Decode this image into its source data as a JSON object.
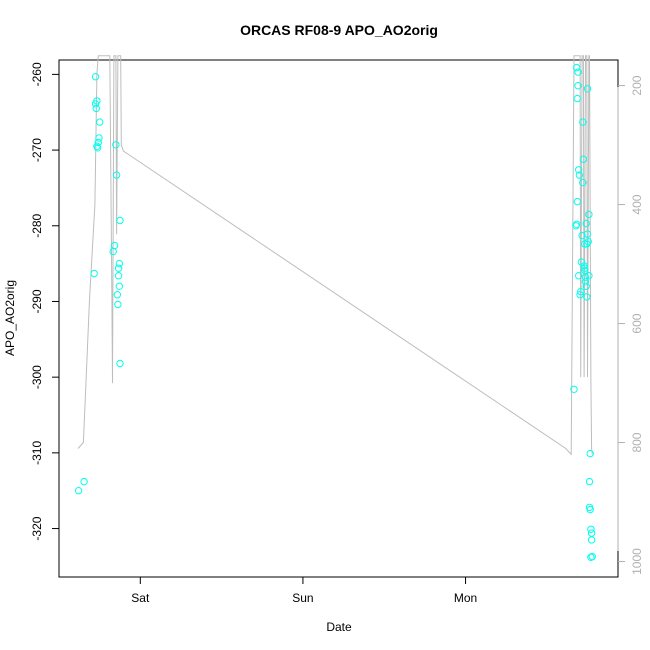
{
  "chart_data": {
    "type": "scatter",
    "title": "ORCAS RF08-9 APO_AO2orig",
    "xlabel": "Date",
    "ylabel": "APO_AO2orig",
    "x_ticks": [
      {
        "label": "Sat",
        "value": 24
      },
      {
        "label": "Sun",
        "value": 48
      },
      {
        "label": "Mon",
        "value": 72
      }
    ],
    "xlim": [
      12.0,
      94.5
    ],
    "ylim": [
      -326.4,
      -258.1
    ],
    "y_ticks": [
      -320,
      -310,
      -300,
      -290,
      -280,
      -270,
      -260
    ],
    "y2_label": "",
    "y2_ticks": [
      200,
      400,
      600,
      800,
      1000
    ],
    "y2lim": [
      1026,
      157
    ],
    "y2_axis_color": "#b0b0b0",
    "grid": false,
    "series": [
      {
        "kind": "points",
        "color": "#00ffee",
        "points": [
          [
            14.9,
            -315.0
          ],
          [
            15.7,
            -313.8
          ],
          [
            17.2,
            -286.3
          ],
          [
            17.4,
            -260.3
          ],
          [
            17.4,
            -263.9
          ],
          [
            17.5,
            -264.5
          ],
          [
            17.6,
            -263.5
          ],
          [
            17.6,
            -269.5
          ],
          [
            17.7,
            -269.7
          ],
          [
            17.8,
            -269.0
          ],
          [
            17.9,
            -268.4
          ],
          [
            18.0,
            -266.3
          ],
          [
            20.0,
            -283.4
          ],
          [
            20.2,
            -282.6
          ],
          [
            20.4,
            -269.3
          ],
          [
            20.5,
            -273.3
          ],
          [
            20.6,
            -289.1
          ],
          [
            20.7,
            -290.4
          ],
          [
            20.8,
            -286.6
          ],
          [
            20.8,
            -285.6
          ],
          [
            20.9,
            -285.0
          ],
          [
            20.9,
            -288.0
          ],
          [
            21.0,
            -279.3
          ],
          [
            21.0,
            -298.2
          ],
          [
            88.0,
            -301.6
          ],
          [
            88.3,
            -280.0
          ],
          [
            88.4,
            -279.8
          ],
          [
            88.5,
            -276.8
          ],
          [
            88.4,
            -259.1
          ],
          [
            88.5,
            -263.2
          ],
          [
            88.6,
            -261.5
          ],
          [
            88.6,
            -259.7
          ],
          [
            88.7,
            -272.6
          ],
          [
            88.8,
            -273.3
          ],
          [
            88.7,
            -286.6
          ],
          [
            88.9,
            -289.1
          ],
          [
            89.0,
            -288.7
          ],
          [
            89.1,
            -284.8
          ],
          [
            89.2,
            -281.3
          ],
          [
            89.3,
            -266.3
          ],
          [
            89.3,
            -274.3
          ],
          [
            89.4,
            -271.2
          ],
          [
            89.5,
            -285.3
          ],
          [
            89.6,
            -285.6
          ],
          [
            89.6,
            -282.4
          ],
          [
            89.6,
            -285.9
          ],
          [
            89.7,
            -287.4
          ],
          [
            89.7,
            -286.8
          ],
          [
            89.8,
            -279.7
          ],
          [
            89.8,
            -288.0
          ],
          [
            89.9,
            -289.4
          ],
          [
            89.9,
            -282.4
          ],
          [
            90.0,
            -261.9
          ],
          [
            90.0,
            -281.1
          ],
          [
            90.1,
            -282.1
          ],
          [
            90.2,
            -278.5
          ],
          [
            90.2,
            -286.6
          ],
          [
            90.3,
            -313.8
          ],
          [
            90.3,
            -317.2
          ],
          [
            90.4,
            -310.1
          ],
          [
            90.4,
            -317.5
          ],
          [
            90.5,
            -320.1
          ],
          [
            90.5,
            -323.8
          ],
          [
            90.6,
            -321.5
          ],
          [
            90.6,
            -320.6
          ],
          [
            90.7,
            -323.7
          ]
        ]
      },
      {
        "kind": "altitude-line",
        "axis": "right",
        "color": "#bdbdbd",
        "points": [
          [
            14.8,
            810
          ],
          [
            15.6,
            800
          ],
          [
            16.5,
            560
          ],
          [
            17.3,
            400
          ],
          [
            17.6,
            180
          ],
          [
            17.8,
            150
          ],
          [
            17.9,
            150
          ],
          [
            18.3,
            150
          ],
          [
            19.5,
            150
          ],
          [
            19.8,
            560
          ],
          [
            19.9,
            700
          ],
          [
            20.1,
            150
          ],
          [
            20.3,
            150
          ],
          [
            20.4,
            150
          ],
          [
            20.5,
            450
          ],
          [
            20.7,
            150
          ],
          [
            20.9,
            150
          ],
          [
            21.1,
            150
          ],
          [
            21.2,
            300
          ],
          [
            21.5,
            310
          ],
          [
            86.8,
            810
          ],
          [
            87.6,
            820
          ],
          [
            88.0,
            150
          ],
          [
            88.4,
            150
          ],
          [
            88.9,
            150
          ],
          [
            89.0,
            690
          ],
          [
            89.2,
            150
          ],
          [
            89.4,
            150
          ],
          [
            89.5,
            690
          ],
          [
            89.7,
            150
          ],
          [
            89.9,
            150
          ],
          [
            90.0,
            690
          ],
          [
            90.2,
            150
          ],
          [
            90.3,
            150
          ],
          [
            90.5,
            700
          ],
          [
            90.6,
            810
          ],
          [
            90.7,
            820
          ]
        ]
      }
    ]
  }
}
